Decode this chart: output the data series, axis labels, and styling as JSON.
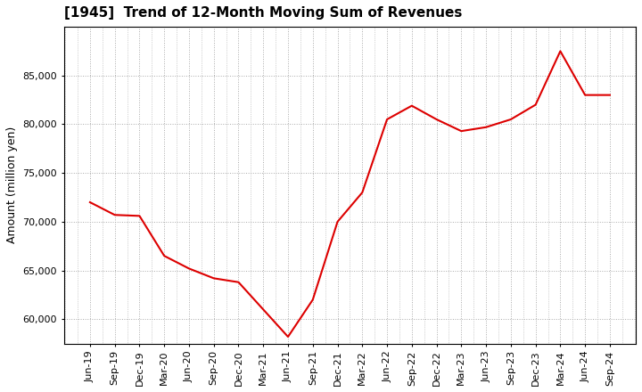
{
  "title": "[1945]  Trend of 12-Month Moving Sum of Revenues",
  "ylabel": "Amount (million yen)",
  "background_color": "#ffffff",
  "line_color": "#dd0000",
  "grid_color": "#aaaaaa",
  "x_labels": [
    "Jun-19",
    "Sep-19",
    "Dec-19",
    "Mar-20",
    "Jun-20",
    "Sep-20",
    "Dec-20",
    "Mar-21",
    "Jun-21",
    "Sep-21",
    "Dec-21",
    "Mar-22",
    "Jun-22",
    "Sep-22",
    "Dec-22",
    "Mar-23",
    "Jun-23",
    "Sep-23",
    "Dec-23",
    "Mar-24",
    "Jun-24",
    "Sep-24"
  ],
  "values": [
    72000,
    70700,
    70600,
    66500,
    65200,
    64200,
    63800,
    61000,
    58200,
    62000,
    70000,
    73000,
    80500,
    81900,
    80500,
    79300,
    79700,
    80500,
    82000,
    87500,
    83000,
    83000
  ],
  "ylim": [
    57500,
    90000
  ],
  "yticks": [
    60000,
    65000,
    70000,
    75000,
    80000,
    85000
  ],
  "title_fontsize": 11,
  "ylabel_fontsize": 9,
  "tick_fontsize": 8
}
